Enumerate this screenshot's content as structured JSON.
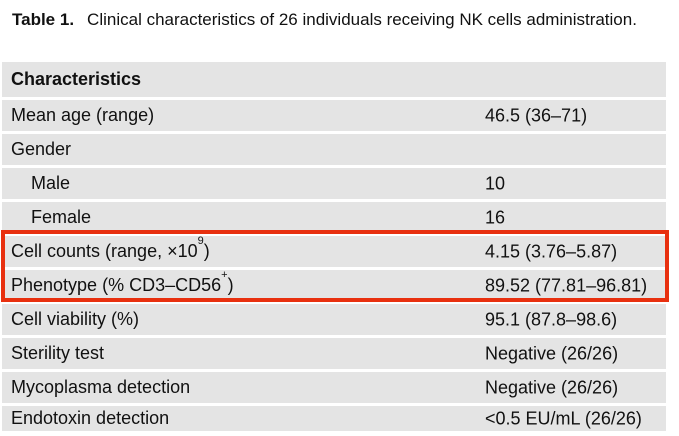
{
  "caption": {
    "label": "Table 1.",
    "text": "Clinical characteristics of 26 individuals receiving NK cells administration."
  },
  "table": {
    "header": "Characteristics",
    "rows": [
      {
        "label": "Mean age (range)",
        "value": "46.5 (36–71)"
      },
      {
        "label": "Gender",
        "value": ""
      },
      {
        "label": "Male",
        "value": "10"
      },
      {
        "label": "Female",
        "value": "16"
      },
      {
        "label": "Cell counts (range, ×10",
        "sup": "9",
        "label_end": ")",
        "value": "4.15 (3.76–5.87)",
        "highlighted": true
      },
      {
        "label": "Phenotype (% CD3–CD56",
        "sup": "+",
        "label_end": ")",
        "value": "89.52 (77.81–96.81)",
        "highlighted": true
      },
      {
        "label": "Cell viability (%)",
        "value": "95.1 (87.8–98.6)"
      },
      {
        "label": "Sterility test",
        "value": "Negative (26/26)"
      },
      {
        "label": "Mycoplasma detection",
        "value": "Negative (26/26)"
      },
      {
        "label": "Endotoxin detection",
        "value": "<0.5 EU/mL (26/26)"
      }
    ]
  },
  "annotation": {
    "highlight_box_color": "#e8300f",
    "row_background_color": "#e4e4e4",
    "text_color": "#111111"
  }
}
